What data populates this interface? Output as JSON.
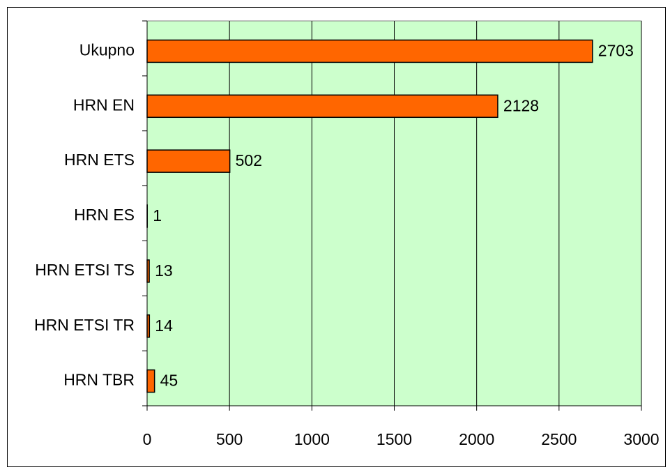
{
  "chart_data": {
    "type": "bar",
    "orientation": "horizontal",
    "categories": [
      "Ukupno",
      "HRN EN",
      "HRN ETS",
      "HRN ES",
      "HRN ETSI TS",
      "HRN ETSI TR",
      "HRN TBR"
    ],
    "values": [
      2703,
      2128,
      502,
      1,
      13,
      14,
      45
    ],
    "color": "#ff6600",
    "plot_background": "#ccffcc",
    "xlim": [
      0,
      3000
    ],
    "xticks": [
      0,
      500,
      1000,
      1500,
      2000,
      2500,
      3000
    ],
    "grid": true
  }
}
